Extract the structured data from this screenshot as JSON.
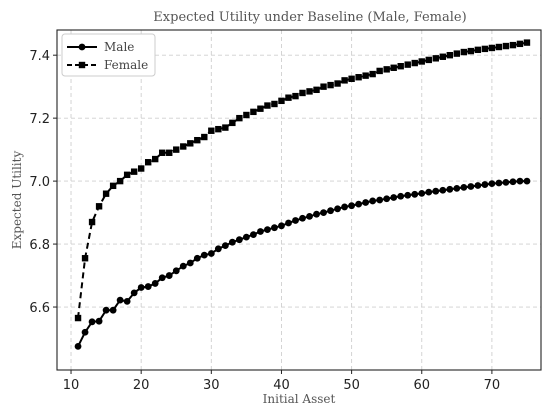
{
  "chart_data": {
    "type": "line",
    "title": "Expected Utility under Baseline (Male, Female)",
    "xlabel": "Initial Asset",
    "ylabel": "Expected Utility",
    "xlim": [
      8,
      77
    ],
    "ylim": [
      6.4,
      7.48
    ],
    "xticks": [
      10,
      20,
      30,
      40,
      50,
      60,
      70
    ],
    "yticks": [
      6.6,
      6.8,
      7.0,
      7.2,
      7.4
    ],
    "grid": true,
    "legend_position": "top-left",
    "x": [
      11,
      12,
      13,
      14,
      15,
      16,
      17,
      18,
      19,
      20,
      21,
      22,
      23,
      24,
      25,
      26,
      27,
      28,
      29,
      30,
      31,
      32,
      33,
      34,
      35,
      36,
      37,
      38,
      39,
      40,
      41,
      42,
      43,
      44,
      45,
      46,
      47,
      48,
      49,
      50,
      51,
      52,
      53,
      54,
      55,
      56,
      57,
      58,
      59,
      60,
      61,
      62,
      63,
      64,
      65,
      66,
      67,
      68,
      69,
      70,
      71,
      72,
      73,
      74,
      75
    ],
    "series": [
      {
        "name": "Male",
        "marker": "circle",
        "linestyle": "solid",
        "color": "#000000",
        "values": [
          6.475,
          6.52,
          6.553,
          6.555,
          6.59,
          6.59,
          6.622,
          6.618,
          6.645,
          6.662,
          6.665,
          6.675,
          6.693,
          6.7,
          6.715,
          6.73,
          6.74,
          6.755,
          6.765,
          6.77,
          6.785,
          6.795,
          6.806,
          6.814,
          6.822,
          6.83,
          6.84,
          6.846,
          6.852,
          6.858,
          6.867,
          6.875,
          6.882,
          6.888,
          6.895,
          6.9,
          6.906,
          6.912,
          6.918,
          6.922,
          6.927,
          6.932,
          6.937,
          6.94,
          6.944,
          6.948,
          6.952,
          6.955,
          6.958,
          6.961,
          6.965,
          6.968,
          6.971,
          6.974,
          6.977,
          6.98,
          6.983,
          6.986,
          6.989,
          6.992,
          6.994,
          6.996,
          6.998,
          7.0,
          7.0
        ]
      },
      {
        "name": "Female",
        "marker": "square",
        "linestyle": "dashed",
        "color": "#000000",
        "values": [
          6.565,
          6.755,
          6.87,
          6.92,
          6.96,
          6.985,
          7.0,
          7.02,
          7.03,
          7.04,
          7.06,
          7.07,
          7.09,
          7.09,
          7.1,
          7.11,
          7.12,
          7.13,
          7.14,
          7.16,
          7.165,
          7.17,
          7.185,
          7.2,
          7.21,
          7.22,
          7.23,
          7.24,
          7.245,
          7.255,
          7.265,
          7.27,
          7.28,
          7.285,
          7.29,
          7.3,
          7.305,
          7.31,
          7.32,
          7.325,
          7.33,
          7.335,
          7.34,
          7.35,
          7.355,
          7.36,
          7.365,
          7.37,
          7.375,
          7.38,
          7.385,
          7.39,
          7.395,
          7.4,
          7.405,
          7.41,
          7.413,
          7.417,
          7.42,
          7.423,
          7.426,
          7.429,
          7.432,
          7.436,
          7.44
        ]
      }
    ]
  }
}
